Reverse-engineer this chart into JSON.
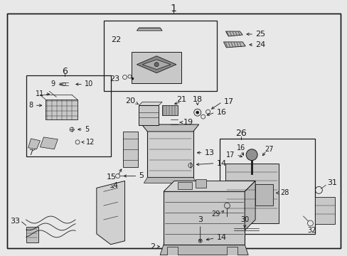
{
  "bg_color": "#e8e8e8",
  "line_color": "#1a1a1a",
  "text_color": "#1a1a1a",
  "fig_width": 4.89,
  "fig_height": 3.6,
  "dpi": 100
}
